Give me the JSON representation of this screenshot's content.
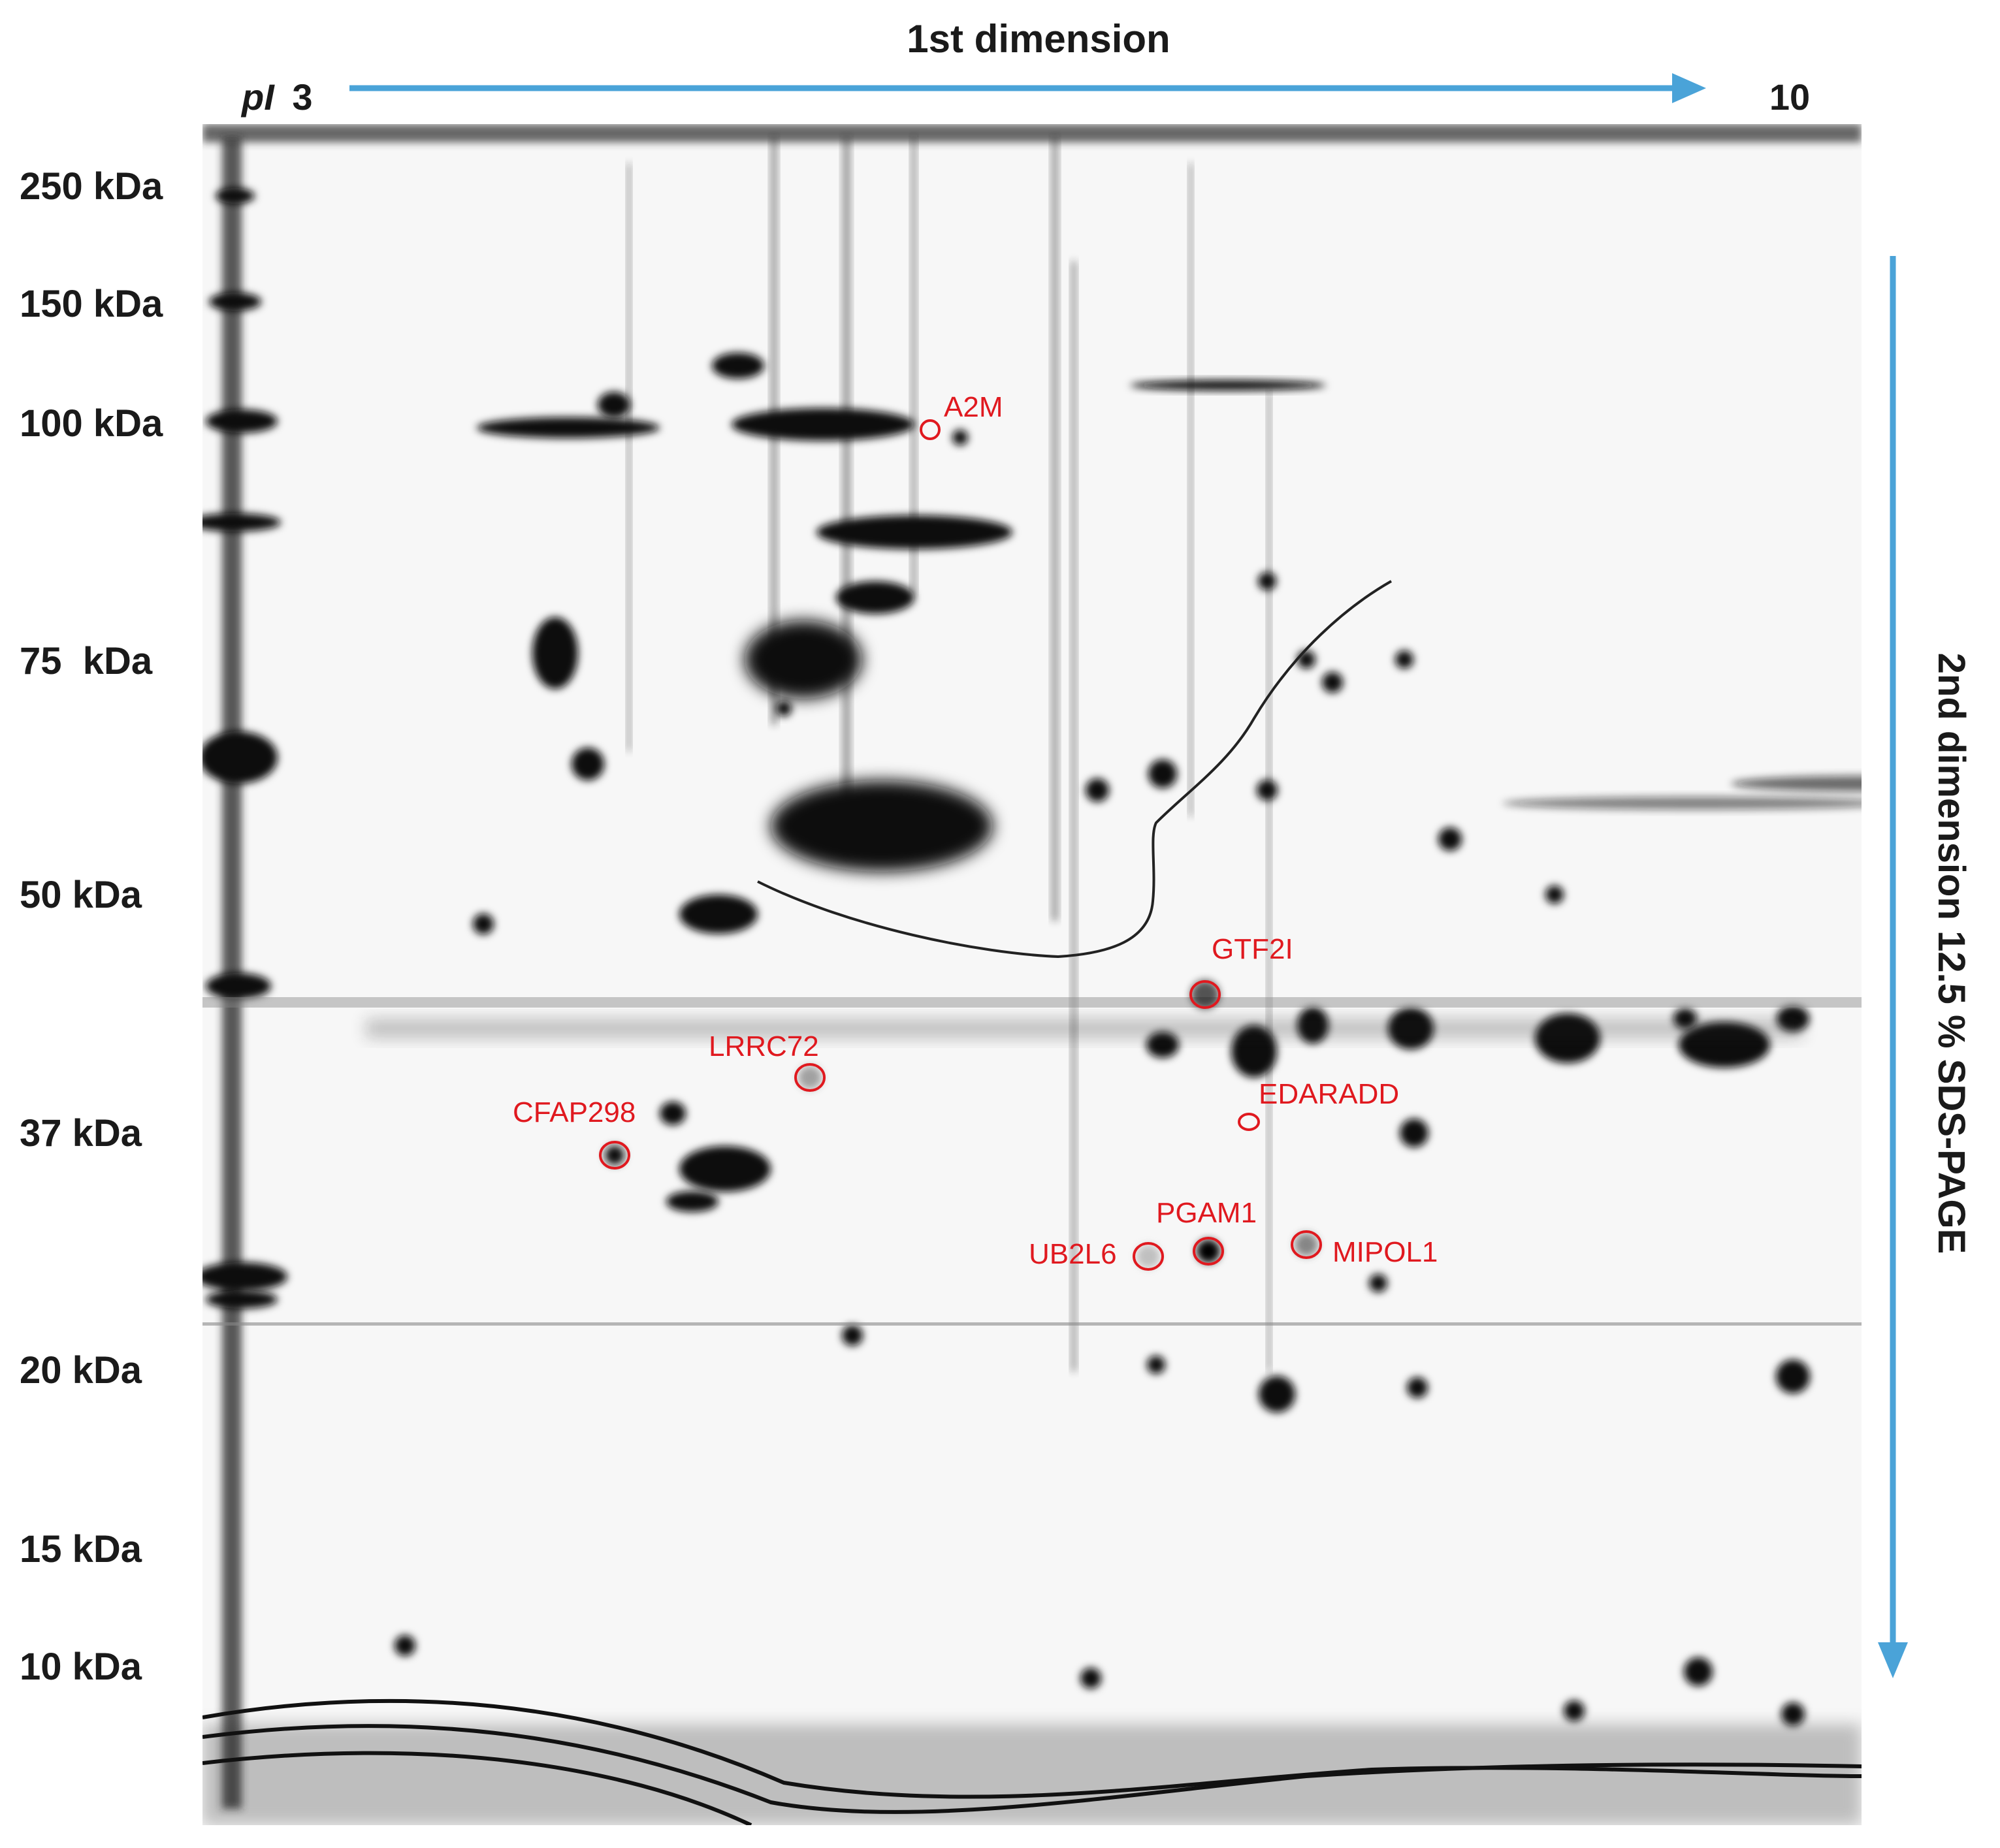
{
  "figure": {
    "first_dimension_label": "1st dimension",
    "second_dimension_label": "2nd dimension 12.5 % SDS-PAGE",
    "ph_start_prefix": "pI",
    "ph_start_value": "3",
    "ph_end_value": "10"
  },
  "colors": {
    "arrow": "#4aa3d8",
    "annotation": "#e0191f",
    "text": "#1a1a1a",
    "gel_background": "#f7f7f7",
    "spot": "#111111"
  },
  "molecular_weight_markers": [
    "250 kDa",
    "150 kDa",
    "100 kDa",
    "75  kDa",
    "50 kDa",
    "37 kDa",
    "20 kDa",
    "15 kDa",
    "10 kDa"
  ],
  "annotated_spots": [
    "A2M",
    "GTF2I",
    "LRRC72",
    "EDARADD",
    "CFAP298",
    "PGAM1",
    "UB2L6",
    "MIPOL1"
  ]
}
